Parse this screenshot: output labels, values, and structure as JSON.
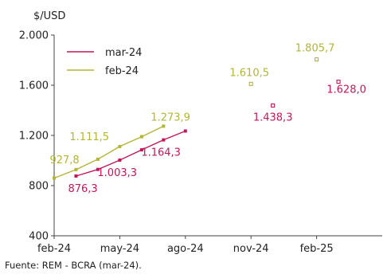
{
  "chart_data": {
    "type": "line",
    "ylabel": "$/USD",
    "ylim": [
      400,
      2000
    ],
    "yticks": [
      400,
      800,
      1200,
      1600,
      2000
    ],
    "ytick_labels": [
      "400",
      "800",
      "1.200",
      "1.600",
      "2.000"
    ],
    "xlim": [
      "2024-02",
      "2025-05"
    ],
    "xticks": [
      "2024-02",
      "2024-05",
      "2024-08",
      "2024-11",
      "2025-02"
    ],
    "xtick_labels": [
      "feb-24",
      "may-24",
      "ago-24",
      "nov-24",
      "feb-25"
    ],
    "grid": false,
    "legend_position": "top-left",
    "source": "Fuente: REM - BCRA (mar-24).",
    "series": [
      {
        "name": "mar-24",
        "color": "#c0185a",
        "points": [
          {
            "x": "2024-03",
            "y": 876.3,
            "label": "876,3"
          },
          {
            "x": "2024-04",
            "y": 929
          },
          {
            "x": "2024-05",
            "y": 1003.3,
            "label": "1.003,3"
          },
          {
            "x": "2024-06",
            "y": 1085
          },
          {
            "x": "2024-07",
            "y": 1164.3,
            "label": "1.164,3"
          },
          {
            "x": "2024-08",
            "y": 1235
          },
          {
            "x": "2024-12",
            "y": 1438.3,
            "label": "1.438,3",
            "isolated": true
          },
          {
            "x": "2025-03",
            "y": 1628.0,
            "label": "1.628,0",
            "isolated": true
          }
        ]
      },
      {
        "name": "feb-24",
        "color": "#b3b535",
        "points": [
          {
            "x": "2024-02",
            "y": 860
          },
          {
            "x": "2024-03",
            "y": 927.8,
            "label": "927,8"
          },
          {
            "x": "2024-04",
            "y": 1010
          },
          {
            "x": "2024-05",
            "y": 1111.5,
            "label": "1.111,5"
          },
          {
            "x": "2024-06",
            "y": 1190
          },
          {
            "x": "2024-07",
            "y": 1273.9,
            "label": "1.273,9"
          },
          {
            "x": "2024-11",
            "y": 1610.5,
            "label": "1.610,5",
            "isolated": true
          },
          {
            "x": "2025-02",
            "y": 1805.7,
            "label": "1.805,7",
            "isolated": true
          }
        ]
      }
    ]
  }
}
